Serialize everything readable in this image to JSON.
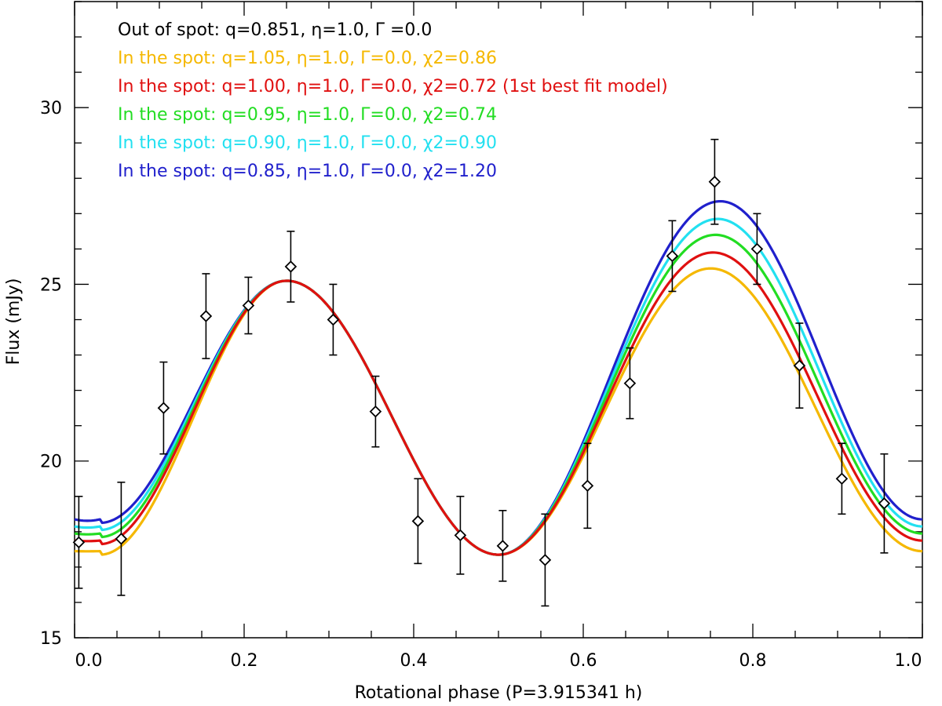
{
  "chart_data": {
    "type": "line",
    "title": "",
    "xlabel": "Rotational phase (P=3.915341 h)",
    "ylabel": "Flux (mJy)",
    "xlim": [
      0.0,
      1.0
    ],
    "ylim": [
      15,
      33
    ],
    "x_ticks": [
      0.0,
      0.2,
      0.4,
      0.6,
      0.8,
      1.0
    ],
    "x_tick_labels": [
      "0.0",
      "0.2",
      "0.4",
      "0.6",
      "0.8",
      "1.0"
    ],
    "y_ticks": [
      15,
      20,
      25,
      30
    ],
    "y_tick_labels": [
      "15",
      "20",
      "25",
      "30"
    ],
    "legend": [
      {
        "text": "Out of spot: q=0.851, η=1.0, Γ =0.0",
        "color": "#000000"
      },
      {
        "text": "In the spot: q=1.05, η=1.0, Γ=0.0, χ2=0.86",
        "color": "#f5b800"
      },
      {
        "text": "In the spot: q=1.00, η=1.0, Γ=0.0, χ2=0.72 (1st best fit model)",
        "color": "#e01010"
      },
      {
        "text": "In the spot: q=0.95, η=1.0, Γ=0.0, χ2=0.74",
        "color": "#22dd22"
      },
      {
        "text": "In the spot: q=0.90, η=1.0, Γ=0.0, χ2=0.90",
        "color": "#22e0f0"
      },
      {
        "text": "In the spot: q=0.85, η=1.0, Γ=0.0, χ2=1.20",
        "color": "#2020cc"
      }
    ],
    "observations": {
      "marker": "diamond",
      "x": [
        0.005,
        0.055,
        0.105,
        0.155,
        0.205,
        0.255,
        0.305,
        0.355,
        0.405,
        0.455,
        0.505,
        0.555,
        0.605,
        0.655,
        0.705,
        0.755,
        0.805,
        0.855,
        0.905,
        0.955
      ],
      "y": [
        17.7,
        17.8,
        21.5,
        24.1,
        24.4,
        25.5,
        24.0,
        21.4,
        18.3,
        17.9,
        17.6,
        17.2,
        19.3,
        22.2,
        25.8,
        27.9,
        26.0,
        22.7,
        19.5,
        18.8
      ],
      "yerr": [
        1.3,
        1.6,
        1.3,
        1.2,
        0.8,
        1.0,
        1.0,
        1.0,
        1.2,
        1.1,
        1.0,
        1.3,
        1.2,
        1.0,
        1.0,
        1.2,
        1.0,
        1.2,
        1.0,
        1.4
      ]
    },
    "series": [
      {
        "name": "q=1.05",
        "color": "#f5b800",
        "shared_peak": 25.1,
        "min": 17.35,
        "second_peak": 25.45,
        "edge": 17.45
      },
      {
        "name": "q=0.85",
        "color": "#2020cc",
        "shared_peak": 25.1,
        "min": 17.35,
        "second_peak": 27.35,
        "edge": 18.35
      },
      {
        "name": "q=0.90",
        "color": "#22e0f0",
        "shared_peak": 25.1,
        "min": 17.35,
        "second_peak": 26.85,
        "edge": 18.15
      },
      {
        "name": "q=0.95",
        "color": "#22dd22",
        "shared_peak": 25.1,
        "min": 17.35,
        "second_peak": 26.4,
        "edge": 17.95
      },
      {
        "name": "q=1.00",
        "color": "#e01010",
        "shared_peak": 25.1,
        "min": 17.35,
        "second_peak": 25.9,
        "edge": 17.75
      }
    ]
  }
}
